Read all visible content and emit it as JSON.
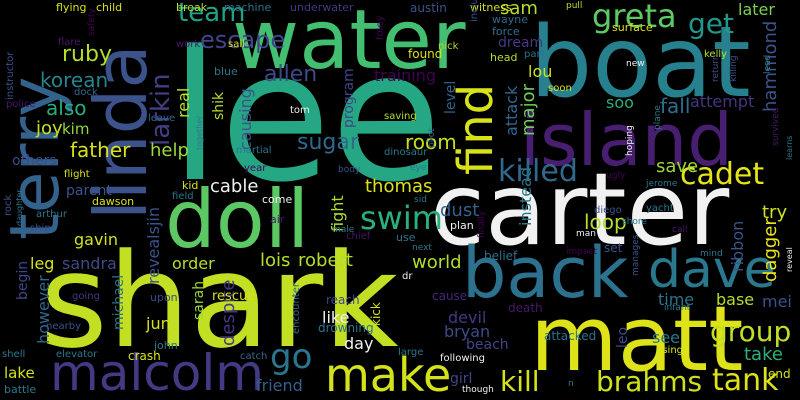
{
  "words": [
    {
      "text": "lee",
      "color": "#26a784"
    },
    {
      "text": "shark",
      "color": "#c2df23"
    },
    {
      "text": "carter",
      "color": "#f1f1f1"
    },
    {
      "text": "boat",
      "color": "#27808e"
    },
    {
      "text": "water",
      "color": "#43bf71"
    },
    {
      "text": "doll",
      "color": "#5cc863"
    },
    {
      "text": "matt",
      "color": "#dde318"
    },
    {
      "text": "terry",
      "color": "#33638d"
    },
    {
      "text": "linda",
      "color": "#3b528b"
    },
    {
      "text": "island",
      "color": "#481f70"
    },
    {
      "text": "back",
      "color": "#2c728e"
    },
    {
      "text": "dave",
      "color": "#2a788e"
    },
    {
      "text": "malcolm",
      "color": "#443983"
    },
    {
      "text": "make",
      "color": "#d2e21b"
    },
    {
      "text": "find",
      "color": "#d8e219"
    },
    {
      "text": "swim",
      "color": "#2ab07f"
    },
    {
      "text": "killed",
      "color": "#31688e"
    },
    {
      "text": "cadet",
      "color": "#e5e419"
    },
    {
      "text": "greta",
      "color": "#5ec962"
    },
    {
      "text": "get",
      "color": "#1f988b"
    },
    {
      "text": "group",
      "color": "#c0df25"
    },
    {
      "text": "kill",
      "color": "#d8e219"
    },
    {
      "text": "brahms",
      "color": "#cde11d"
    },
    {
      "text": "tank",
      "color": "#dde318"
    },
    {
      "text": "team",
      "color": "#20a386"
    },
    {
      "text": "escape",
      "color": "#404688"
    },
    {
      "text": "allen",
      "color": "#3e4a89"
    },
    {
      "text": "larkin",
      "color": "#433e85"
    },
    {
      "text": "ruby",
      "color": "#b5de2b"
    },
    {
      "text": "korean",
      "color": "#25858e"
    },
    {
      "text": "also",
      "color": "#27ad81"
    },
    {
      "text": "joy",
      "color": "#c8e020"
    },
    {
      "text": "kim",
      "color": "#90d743"
    },
    {
      "text": "father",
      "color": "#d8e219"
    },
    {
      "text": "help",
      "color": "#9bd93c"
    },
    {
      "text": "sugar",
      "color": "#30698e"
    },
    {
      "text": "room",
      "color": "#c5e021"
    },
    {
      "text": "thomas",
      "color": "#dde318"
    },
    {
      "text": "cable",
      "color": "#f1f1f1"
    },
    {
      "text": "go",
      "color": "#2a768e"
    },
    {
      "text": "lois",
      "color": "#b5de2b"
    },
    {
      "text": "robert",
      "color": "#b5de2b"
    },
    {
      "text": "world",
      "color": "#b2dd2d"
    },
    {
      "text": "dust",
      "color": "#355f8d"
    },
    {
      "text": "loop",
      "color": "#b2dd2d"
    },
    {
      "text": "save",
      "color": "#9bd93c"
    },
    {
      "text": "fall",
      "color": "#2d708e"
    },
    {
      "text": "attempt",
      "color": "#463480"
    },
    {
      "text": "soo",
      "color": "#2ab07f"
    },
    {
      "text": "later",
      "color": "#7ad151"
    },
    {
      "text": "sam",
      "color": "#b5de2b"
    },
    {
      "text": "hammond",
      "color": "#3b528b"
    },
    {
      "text": "try",
      "color": "#cde11d"
    },
    {
      "text": "dagger",
      "color": "#ea e51a"
    },
    {
      "text": "order",
      "color": "#b5de2b"
    },
    {
      "text": "gavin",
      "color": "#d2e21b"
    },
    {
      "text": "leg",
      "color": "#d8e219"
    },
    {
      "text": "sandra",
      "color": "#3e4989"
    },
    {
      "text": "begin",
      "color": "#3f4788"
    },
    {
      "text": "however",
      "color": "#31688e"
    },
    {
      "text": "michael",
      "color": "#2c728e"
    },
    {
      "text": "lake",
      "color": "#d2e21b"
    },
    {
      "text": "jun",
      "color": "#d8e219"
    },
    {
      "text": "sarah",
      "color": "#9bd93c"
    },
    {
      "text": "despite",
      "color": "#453781"
    },
    {
      "text": "friend",
      "color": "#355f8d"
    },
    {
      "text": "like",
      "color": "#f1f1f1"
    },
    {
      "text": "day",
      "color": "#f1f1f1"
    },
    {
      "text": "devil",
      "color": "#453882"
    },
    {
      "text": "bryan",
      "color": "#3e4a89"
    },
    {
      "text": "beach",
      "color": "#404688"
    },
    {
      "text": "girl",
      "color": "#404688"
    },
    {
      "text": "time",
      "color": "#2b748e"
    },
    {
      "text": "base",
      "color": "#b5de2b"
    },
    {
      "text": "take",
      "color": "#2ab07f"
    },
    {
      "text": "mei",
      "color": "#3b528b"
    },
    {
      "text": "see",
      "color": "#2a788e"
    },
    {
      "text": "leo",
      "color": "#3e4a89"
    },
    {
      "text": "ribbon",
      "color": "#39558c"
    },
    {
      "text": "lou",
      "color": "#cde11d"
    },
    {
      "text": "dream",
      "color": "#453781"
    },
    {
      "text": "program",
      "color": "#404688"
    },
    {
      "text": "training",
      "color": "#440154"
    },
    {
      "text": "real",
      "color": "#bddf26"
    },
    {
      "text": "shik",
      "color": "#b5de2b"
    },
    {
      "text": "causing",
      "color": "#3b528b"
    },
    {
      "text": "fight",
      "color": "#b2dd2d"
    },
    {
      "text": "instead",
      "color": "#2a788e"
    },
    {
      "text": "attack",
      "color": "#31688e"
    },
    {
      "text": "major",
      "color": "#6ece58"
    },
    {
      "text": "level",
      "color": "#32648e"
    },
    {
      "text": "revealsjin",
      "color": "#3b528b"
    },
    {
      "text": "parent",
      "color": "#39558c"
    },
    {
      "text": "others",
      "color": "#3e4a89"
    },
    {
      "text": "rescue",
      "color": "#d2e21b"
    },
    {
      "text": "drowning",
      "color": "#2c728e"
    },
    {
      "text": "reach",
      "color": "#404688"
    },
    {
      "text": "kick",
      "color": "#d2e21b"
    },
    {
      "text": "crash",
      "color": "#d8e219"
    },
    {
      "text": "john",
      "color": "#2a788e"
    },
    {
      "text": "upon",
      "color": "#3f4788"
    },
    {
      "text": "cause",
      "color": "#482677"
    },
    {
      "text": "belief",
      "color": "#2d708e"
    },
    {
      "text": "death",
      "color": "#481769"
    },
    {
      "text": "attacked",
      "color": "#2c728e"
    },
    {
      "text": "set",
      "color": "#39558c"
    },
    {
      "text": "end",
      "color": "#d8e219"
    },
    {
      "text": "austin",
      "color": "#3b528b"
    },
    {
      "text": "witness",
      "color": "#d8e219"
    },
    {
      "text": "wayne",
      "color": "#31688e"
    },
    {
      "text": "force",
      "color": "#2c728e"
    },
    {
      "text": "part",
      "color": "#2d708e"
    },
    {
      "text": "head",
      "color": "#b5de2b"
    },
    {
      "text": "nick",
      "color": "#b5de2b"
    },
    {
      "text": "found",
      "color": "#d8e219"
    },
    {
      "text": "foley",
      "color": "#440154"
    },
    {
      "text": "break",
      "color": "#b5de2b"
    },
    {
      "text": "machine",
      "color": "#2c728e"
    },
    {
      "text": "underwater",
      "color": "#453781"
    },
    {
      "text": "flying",
      "color": "#d8e219"
    },
    {
      "text": "child",
      "color": "#d8e219"
    },
    {
      "text": "instructor",
      "color": "#3b528b"
    },
    {
      "text": "police",
      "color": "#481769"
    },
    {
      "text": "flight",
      "color": "#d8e219"
    },
    {
      "text": "dawson",
      "color": "#d8e219"
    },
    {
      "text": "arthur",
      "color": "#2a788e"
    },
    {
      "text": "ship",
      "color": "#3b528b"
    },
    {
      "text": "rock",
      "color": "#3b528b"
    },
    {
      "text": "shell",
      "color": "#2a788e"
    },
    {
      "text": "battle",
      "color": "#2a788e"
    },
    {
      "text": "elevator",
      "color": "#2a788e"
    },
    {
      "text": "nearby",
      "color": "#3b528b"
    },
    {
      "text": "going",
      "color": "#453781"
    },
    {
      "text": "dock",
      "color": "#31688e"
    },
    {
      "text": "flare",
      "color": "#481769"
    },
    {
      "text": "safety",
      "color": "#440154"
    },
    {
      "text": "blue",
      "color": "#2a788e"
    },
    {
      "text": "work",
      "color": "#481769"
    },
    {
      "text": "sail",
      "color": "#d8e219"
    },
    {
      "text": "leave",
      "color": "#31688e"
    },
    {
      "text": "martial",
      "color": "#2a788e"
    },
    {
      "text": "year",
      "color": "#440154"
    },
    {
      "text": "kid",
      "color": "#d8e219"
    },
    {
      "text": "field",
      "color": "#2a788e"
    },
    {
      "text": "come",
      "color": "#f1f1f1"
    },
    {
      "text": "air",
      "color": "#481769"
    },
    {
      "text": "tom",
      "color": "#f1f1f1"
    },
    {
      "text": "body",
      "color": "#3b528b"
    },
    {
      "text": "saving",
      "color": "#b5de2b"
    },
    {
      "text": "dinosaur",
      "color": "#2a788e"
    },
    {
      "text": "pilot",
      "color": "#31688e"
    },
    {
      "text": "eye",
      "color": "#2a788e"
    },
    {
      "text": "sid",
      "color": "#2a788e"
    },
    {
      "text": "chief",
      "color": "#481769"
    },
    {
      "text": "male",
      "color": "#2a788e"
    },
    {
      "text": "use",
      "color": "#2a788e"
    },
    {
      "text": "dr",
      "color": "#f1f1f1"
    },
    {
      "text": "next",
      "color": "#2a788e"
    },
    {
      "text": "plan",
      "color": "#f1f1f1"
    },
    {
      "text": "finally",
      "color": "#440154"
    },
    {
      "text": "encounter",
      "color": "#31688e"
    },
    {
      "text": "large",
      "color": "#2a788e"
    },
    {
      "text": "following",
      "color": "#f1f1f1"
    },
    {
      "text": "though",
      "color": "#f1f1f1"
    },
    {
      "text": "catch",
      "color": "#31688e"
    },
    {
      "text": "n",
      "color": "#2a788e"
    },
    {
      "text": "soon",
      "color": "#d8e219"
    },
    {
      "text": "including",
      "color": "#3b528b"
    },
    {
      "text": "surface",
      "color": "#d8e219"
    },
    {
      "text": "hoping",
      "color": "#f1f1f1"
    },
    {
      "text": "plane",
      "color": "#2a788e"
    },
    {
      "text": "ugly",
      "color": "#440154"
    },
    {
      "text": "jerome",
      "color": "#2a788e"
    },
    {
      "text": "diego",
      "color": "#3b528b"
    },
    {
      "text": "man",
      "color": "#f1f1f1"
    },
    {
      "text": "impact",
      "color": "#440154"
    },
    {
      "text": "shore",
      "color": "#2a788e"
    },
    {
      "text": "yacht",
      "color": "#2a788e"
    },
    {
      "text": "call",
      "color": "#481769"
    },
    {
      "text": "mind",
      "color": "#2a788e"
    },
    {
      "text": "manages",
      "color": "#3b528b"
    },
    {
      "text": "infant",
      "color": "#2a788e"
    },
    {
      "text": "using",
      "color": "#d8e219"
    },
    {
      "text": "pull",
      "color": "#b5de2b"
    },
    {
      "text": "kelly",
      "color": "#b5de2b"
    },
    {
      "text": "new",
      "color": "#f1f1f1"
    },
    {
      "text": "return",
      "color": "#3b528b"
    },
    {
      "text": "killing",
      "color": "#3b528b"
    },
    {
      "text": "lead",
      "color": "#2a788e"
    },
    {
      "text": "survived",
      "color": "#481769"
    },
    {
      "text": "learns",
      "color": "#2a788e"
    },
    {
      "text": "reveal",
      "color": "#f1f1f1"
    },
    {
      "text": "daughter",
      "color": "#2a788e"
    },
    {
      "text": "together",
      "color": "#2a788e"
    },
    {
      "text": "sd",
      "color": "#2a788e"
    }
  ]
}
